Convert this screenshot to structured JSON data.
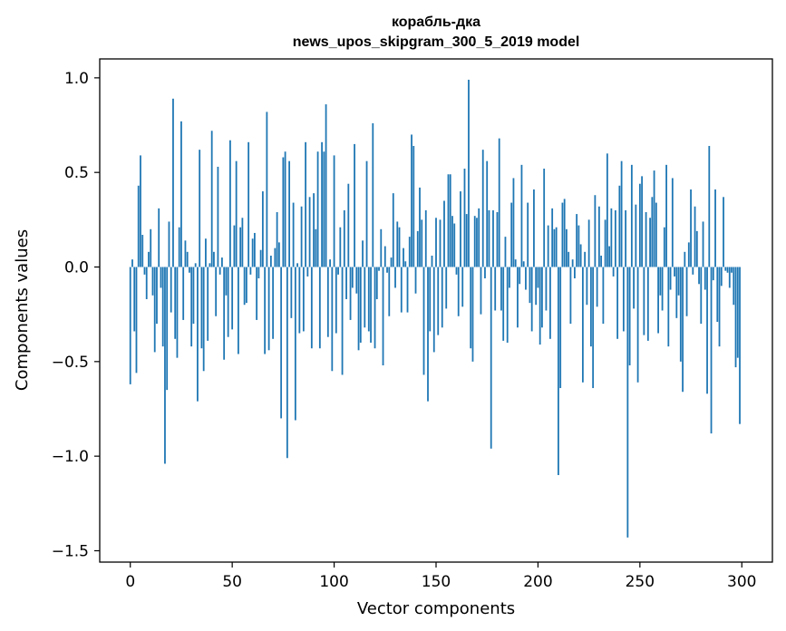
{
  "chart_data": {
    "type": "bar",
    "title_line1": "корабль-дка",
    "title_line2": "news_upos_skipgram_300_5_2019 model",
    "xlabel": "Vector components",
    "ylabel": "Components values",
    "xlim": [
      -15,
      315
    ],
    "ylim": [
      -1.56,
      1.1
    ],
    "xticks": [
      0,
      50,
      100,
      150,
      200,
      250,
      300
    ],
    "xtick_labels": [
      "0",
      "50",
      "100",
      "150",
      "200",
      "250",
      "300"
    ],
    "yticks": [
      -1.5,
      -1.0,
      -0.5,
      0.0,
      0.5,
      1.0
    ],
    "ytick_labels": [
      "−1.5",
      "−1.0",
      "−0.5",
      "0.0",
      "0.5",
      "1.0"
    ],
    "bar_color": "#1f77b4",
    "grid": false,
    "values": [
      -0.62,
      0.04,
      -0.34,
      -0.56,
      0.43,
      0.59,
      0.17,
      -0.04,
      -0.17,
      0.08,
      0.2,
      -0.15,
      -0.45,
      -0.3,
      0.31,
      -0.11,
      -0.42,
      -1.04,
      -0.65,
      0.24,
      -0.24,
      0.89,
      -0.38,
      -0.48,
      0.21,
      0.77,
      -0.28,
      0.14,
      0.08,
      -0.03,
      -0.42,
      -0.3,
      0.02,
      -0.71,
      0.62,
      -0.43,
      -0.55,
      0.15,
      -0.39,
      0.02,
      0.72,
      0.08,
      -0.26,
      0.53,
      -0.04,
      0.05,
      -0.49,
      -0.15,
      -0.37,
      0.67,
      -0.33,
      0.22,
      0.56,
      -0.46,
      0.21,
      0.26,
      -0.2,
      -0.19,
      0.66,
      -0.04,
      0.15,
      0.18,
      -0.28,
      -0.06,
      0.09,
      0.4,
      -0.46,
      0.82,
      -0.44,
      0.06,
      -0.38,
      0.1,
      0.29,
      0.13,
      -0.8,
      0.58,
      0.61,
      -1.01,
      0.56,
      -0.27,
      0.34,
      -0.81,
      0.02,
      -0.35,
      0.32,
      -0.34,
      0.66,
      -0.05,
      0.37,
      -0.43,
      0.39,
      0.2,
      0.61,
      -0.43,
      0.66,
      0.61,
      0.86,
      -0.37,
      0.04,
      -0.55,
      0.59,
      -0.35,
      -0.04,
      0.21,
      -0.57,
      0.3,
      -0.17,
      0.44,
      -0.28,
      -0.11,
      0.65,
      -0.14,
      -0.44,
      -0.4,
      0.14,
      -0.32,
      0.56,
      -0.34,
      -0.4,
      0.76,
      -0.43,
      -0.17,
      -0.02,
      0.2,
      -0.52,
      0.11,
      -0.03,
      -0.26,
      0.05,
      0.39,
      -0.11,
      0.24,
      0.21,
      -0.24,
      0.1,
      0.03,
      -0.24,
      0.16,
      0.7,
      0.64,
      -0.14,
      0.19,
      0.42,
      0.25,
      -0.57,
      0.3,
      -0.71,
      -0.34,
      0.06,
      -0.45,
      0.26,
      -0.36,
      0.25,
      -0.32,
      0.35,
      -0.22,
      0.49,
      0.49,
      0.27,
      0.23,
      -0.04,
      -0.26,
      0.4,
      -0.21,
      0.52,
      0.28,
      0.99,
      -0.43,
      -0.5,
      0.27,
      0.26,
      0.31,
      -0.25,
      0.62,
      -0.06,
      0.56,
      0.3,
      -0.96,
      0.3,
      -0.23,
      0.29,
      0.68,
      -0.23,
      -0.39,
      0.16,
      -0.4,
      -0.11,
      0.34,
      0.47,
      0.04,
      -0.32,
      -0.09,
      0.54,
      0.03,
      -0.12,
      0.34,
      -0.19,
      -0.34,
      0.41,
      -0.2,
      -0.11,
      -0.41,
      -0.32,
      0.52,
      -0.23,
      0.22,
      -0.38,
      0.31,
      0.2,
      0.21,
      -1.1,
      -0.64,
      0.34,
      0.36,
      0.2,
      0.08,
      -0.3,
      0.04,
      -0.06,
      0.28,
      0.22,
      0.12,
      -0.61,
      0.08,
      -0.2,
      0.25,
      -0.42,
      -0.64,
      0.38,
      -0.21,
      0.32,
      0.06,
      -0.3,
      0.25,
      0.6,
      0.11,
      0.31,
      -0.05,
      0.3,
      -0.38,
      0.43,
      0.56,
      -0.34,
      0.3,
      -1.43,
      -0.52,
      0.54,
      -0.22,
      0.33,
      -0.61,
      0.44,
      0.48,
      -0.36,
      0.29,
      -0.39,
      0.26,
      0.37,
      0.51,
      0.34,
      -0.35,
      -0.15,
      -0.23,
      0.21,
      0.54,
      -0.42,
      -0.12,
      0.47,
      -0.05,
      -0.27,
      -0.15,
      -0.5,
      -0.66,
      0.08,
      -0.26,
      0.13,
      0.41,
      -0.04,
      0.32,
      0.19,
      -0.09,
      -0.3,
      0.24,
      -0.12,
      -0.67,
      0.64,
      -0.88,
      -0.07,
      0.41,
      -0.29,
      -0.42,
      -0.1,
      0.37,
      -0.02,
      -0.03,
      -0.11,
      -0.03,
      -0.2,
      -0.53,
      -0.48,
      -0.83
    ]
  }
}
